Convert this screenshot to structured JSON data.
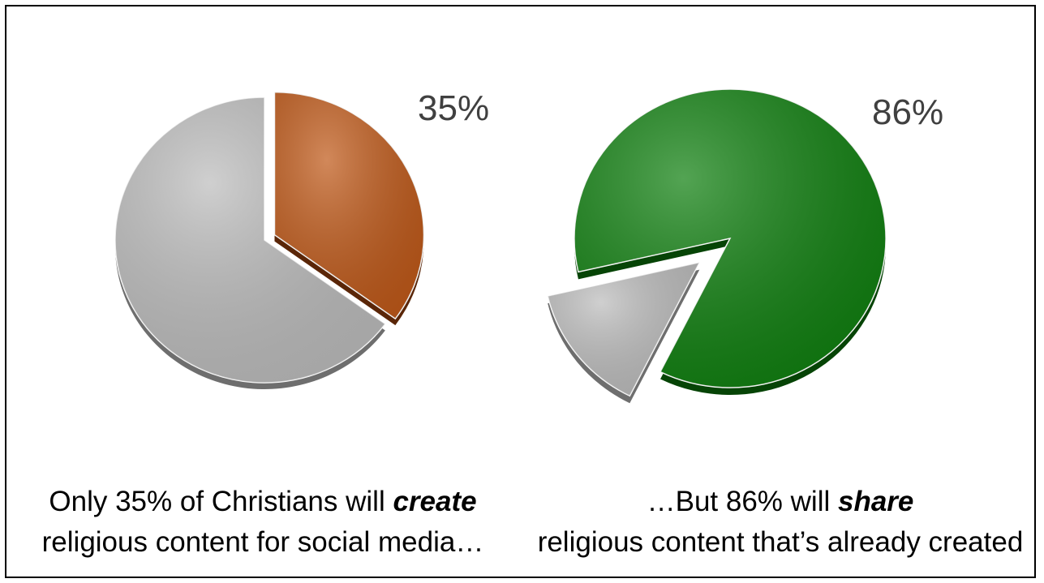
{
  "chart_data": [
    {
      "type": "pie",
      "title": "",
      "slices": [
        {
          "value": 35,
          "color": "#c05a1a",
          "side": "#5a2608"
        },
        {
          "value": 65,
          "color": "#bdbdbd",
          "side": "#6e6e6e"
        }
      ],
      "data_label": "35%",
      "caption": {
        "before": "Only 35% of Christians will ",
        "emphasis": "create",
        "after": "religious content for social media…"
      }
    },
    {
      "type": "pie",
      "title": "",
      "slices": [
        {
          "value": 86,
          "color": "#108010",
          "side": "#064406"
        },
        {
          "value": 14,
          "color": "#bdbdbd",
          "side": "#6e6e6e"
        }
      ],
      "data_label": "86%",
      "caption": {
        "before": "…But 86% will ",
        "emphasis": "share",
        "after": " religious content that’s already created"
      }
    }
  ]
}
